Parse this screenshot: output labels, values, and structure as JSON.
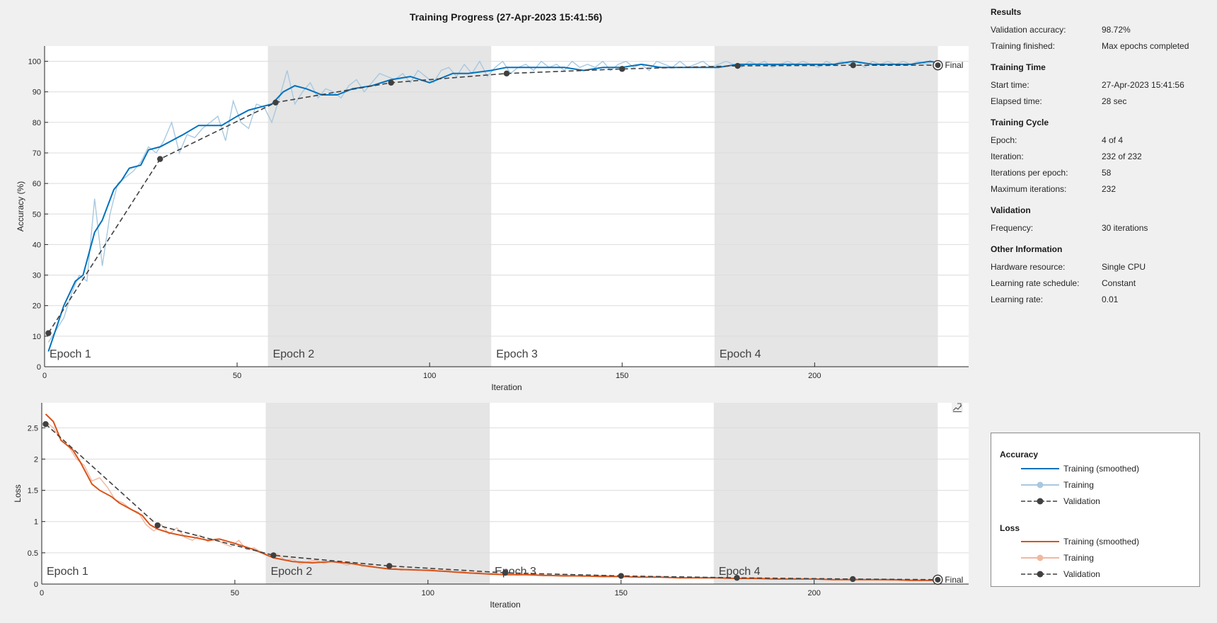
{
  "title": "Training Progress (27-Apr-2023 15:41:56)",
  "colors": {
    "acc_smooth": "#0072bd",
    "acc_raw": "#a8c8e0",
    "loss_smooth": "#d95319",
    "loss_raw": "#f0b8a0",
    "validation": "#404040",
    "epoch_shade": "#e5e5e5",
    "grid": "#dcdcdc"
  },
  "chart_data": [
    {
      "type": "line",
      "id": "accuracy",
      "xlabel": "Iteration",
      "ylabel": "Accuracy (%)",
      "xlim": [
        0,
        240
      ],
      "ylim": [
        0,
        105
      ],
      "xticks": [
        0,
        50,
        100,
        150,
        200
      ],
      "yticks": [
        0,
        10,
        20,
        30,
        40,
        50,
        60,
        70,
        80,
        90,
        100
      ],
      "grid": true,
      "epochs": [
        {
          "label": "Epoch 1",
          "start": 0,
          "end": 58
        },
        {
          "label": "Epoch 2",
          "start": 58,
          "end": 116
        },
        {
          "label": "Epoch 3",
          "start": 116,
          "end": 174
        },
        {
          "label": "Epoch 4",
          "start": 174,
          "end": 232
        }
      ],
      "final_label": "Final",
      "smoothed": {
        "name": "Training (smoothed)",
        "x": [
          1,
          5,
          8,
          10,
          13,
          15,
          18,
          20,
          22,
          25,
          27,
          30,
          33,
          36,
          40,
          43,
          46,
          50,
          53,
          56,
          59,
          62,
          65,
          68,
          72,
          76,
          80,
          85,
          90,
          95,
          100,
          106,
          110,
          116,
          120,
          125,
          130,
          135,
          140,
          145,
          150,
          155,
          160,
          165,
          170,
          175,
          180,
          185,
          190,
          195,
          200,
          205,
          210,
          215,
          220,
          225,
          230,
          232
        ],
        "y": [
          5,
          20,
          28,
          30,
          44,
          48,
          58,
          61,
          65,
          66,
          71,
          72,
          74,
          76,
          79,
          79,
          79,
          82,
          84,
          85,
          86,
          90,
          92,
          91,
          89,
          89,
          91,
          92,
          94,
          95,
          93,
          96,
          96,
          97,
          98,
          98,
          98,
          98,
          97,
          98,
          98,
          99,
          98,
          98,
          98,
          98,
          99,
          99,
          99,
          99,
          99,
          99,
          100,
          99,
          99,
          99,
          100,
          99.5
        ]
      },
      "raw": {
        "name": "Training",
        "x": [
          1,
          3,
          5,
          7,
          9,
          11,
          13,
          15,
          17,
          19,
          21,
          23,
          25,
          27,
          29,
          31,
          33,
          35,
          37,
          39,
          41,
          43,
          45,
          47,
          49,
          51,
          53,
          55,
          57,
          59,
          61,
          63,
          65,
          67,
          69,
          71,
          73,
          75,
          77,
          79,
          81,
          83,
          85,
          87,
          89,
          91,
          93,
          95,
          97,
          99,
          101,
          103,
          105,
          107,
          109,
          111,
          113,
          115,
          117,
          119,
          121,
          123,
          125,
          127,
          129,
          131,
          133,
          135,
          137,
          139,
          141,
          143,
          145,
          147,
          149,
          151,
          153,
          155,
          157,
          159,
          161,
          163,
          165,
          167,
          169,
          171,
          173,
          175,
          177,
          179,
          181,
          183,
          185,
          187,
          189,
          191,
          193,
          195,
          197,
          199,
          201,
          203,
          205,
          207,
          209,
          211,
          213,
          215,
          217,
          219,
          221,
          223,
          225,
          227,
          229,
          231
        ],
        "y": [
          8,
          12,
          16,
          24,
          30,
          28,
          55,
          33,
          50,
          60,
          62,
          64,
          67,
          72,
          70,
          74,
          80,
          70,
          76,
          75,
          78,
          80,
          82,
          74,
          87,
          80,
          78,
          86,
          85,
          80,
          88,
          97,
          86,
          90,
          93,
          88,
          91,
          90,
          88,
          92,
          94,
          90,
          93,
          96,
          95,
          94,
          96,
          93,
          97,
          95,
          93,
          97,
          98,
          95,
          99,
          96,
          100,
          95,
          98,
          100,
          96,
          98,
          99,
          97,
          100,
          98,
          99,
          97,
          100,
          98,
          99,
          98,
          100,
          97,
          99,
          100,
          98,
          99,
          97,
          100,
          99,
          98,
          100,
          98,
          99,
          100,
          98,
          99,
          100,
          99,
          98,
          100,
          99,
          100,
          98,
          99,
          100,
          99,
          100,
          99,
          98,
          100,
          99,
          100,
          99,
          100,
          98,
          100,
          99,
          100,
          99,
          100,
          99,
          100,
          99,
          100
        ]
      },
      "validation": {
        "name": "Validation",
        "x": [
          1,
          30,
          60,
          90,
          120,
          150,
          180,
          210,
          232
        ],
        "y": [
          11,
          68,
          86.5,
          93,
          96,
          97.5,
          98.5,
          98.7,
          98.72
        ]
      }
    },
    {
      "type": "line",
      "id": "loss",
      "xlabel": "Iteration",
      "ylabel": "Loss",
      "xlim": [
        0,
        240
      ],
      "ylim": [
        0,
        2.9
      ],
      "xticks": [
        0,
        50,
        100,
        150,
        200
      ],
      "yticks": [
        0,
        0.5,
        1,
        1.5,
        2,
        2.5
      ],
      "yticklabels": [
        "0",
        "0.5",
        "1",
        "1.5",
        "2",
        "2.5"
      ],
      "grid": true,
      "epochs": [
        {
          "label": "Epoch 1",
          "start": 0,
          "end": 58
        },
        {
          "label": "Epoch 2",
          "start": 58,
          "end": 116
        },
        {
          "label": "Epoch 3",
          "start": 116,
          "end": 174
        },
        {
          "label": "Epoch 4",
          "start": 174,
          "end": 232
        }
      ],
      "final_label": "Final",
      "smoothed": {
        "name": "Training (smoothed)",
        "x": [
          1,
          3,
          5,
          8,
          10,
          13,
          15,
          18,
          20,
          23,
          26,
          28,
          30,
          33,
          36,
          40,
          43,
          46,
          50,
          55,
          60,
          65,
          70,
          75,
          80,
          85,
          90,
          95,
          100,
          105,
          110,
          116,
          120,
          125,
          130,
          135,
          140,
          145,
          150,
          155,
          160,
          165,
          170,
          175,
          180,
          185,
          190,
          195,
          200,
          205,
          210,
          215,
          220,
          225,
          232
        ],
        "y": [
          2.72,
          2.6,
          2.3,
          2.15,
          1.95,
          1.6,
          1.5,
          1.4,
          1.3,
          1.2,
          1.1,
          0.95,
          0.88,
          0.82,
          0.78,
          0.74,
          0.7,
          0.72,
          0.65,
          0.55,
          0.42,
          0.36,
          0.34,
          0.36,
          0.33,
          0.28,
          0.24,
          0.23,
          0.22,
          0.2,
          0.18,
          0.16,
          0.15,
          0.15,
          0.14,
          0.13,
          0.13,
          0.12,
          0.12,
          0.11,
          0.11,
          0.1,
          0.1,
          0.1,
          0.09,
          0.09,
          0.08,
          0.08,
          0.08,
          0.07,
          0.07,
          0.07,
          0.07,
          0.06,
          0.06
        ]
      },
      "raw": {
        "name": "Training",
        "x": [
          1,
          3,
          5,
          7,
          9,
          11,
          13,
          15,
          17,
          19,
          21,
          23,
          25,
          27,
          29,
          31,
          33,
          35,
          37,
          39,
          41,
          43,
          45,
          47,
          49,
          51,
          53,
          55,
          57,
          59,
          61,
          63,
          65,
          67,
          69,
          71,
          73,
          75,
          77,
          79,
          81,
          83,
          85,
          87,
          89,
          91,
          93,
          95,
          97,
          99,
          101,
          103,
          105,
          107,
          109,
          111,
          113,
          115,
          117,
          119,
          121,
          123,
          125,
          130,
          135,
          140,
          145,
          150,
          155,
          160,
          165,
          170,
          175,
          180,
          185,
          190,
          195,
          200,
          205,
          210,
          215,
          220,
          225,
          230
        ],
        "y": [
          2.6,
          2.5,
          2.3,
          2.2,
          2.0,
          1.9,
          1.65,
          1.7,
          1.55,
          1.35,
          1.3,
          1.2,
          1.15,
          0.95,
          0.85,
          0.95,
          0.8,
          0.9,
          0.75,
          0.7,
          0.78,
          0.68,
          0.72,
          0.65,
          0.6,
          0.7,
          0.55,
          0.58,
          0.5,
          0.45,
          0.48,
          0.38,
          0.4,
          0.32,
          0.36,
          0.38,
          0.33,
          0.36,
          0.34,
          0.3,
          0.34,
          0.28,
          0.3,
          0.26,
          0.25,
          0.27,
          0.22,
          0.24,
          0.23,
          0.22,
          0.24,
          0.2,
          0.22,
          0.19,
          0.2,
          0.17,
          0.19,
          0.16,
          0.18,
          0.15,
          0.17,
          0.14,
          0.15,
          0.13,
          0.15,
          0.12,
          0.14,
          0.12,
          0.11,
          0.12,
          0.1,
          0.11,
          0.1,
          0.09,
          0.1,
          0.08,
          0.09,
          0.08,
          0.07,
          0.08,
          0.07,
          0.06,
          0.07,
          0.06
        ]
      },
      "validation": {
        "name": "Validation",
        "x": [
          1,
          30,
          60,
          90,
          120,
          150,
          180,
          210,
          232
        ],
        "y": [
          2.56,
          0.94,
          0.46,
          0.29,
          0.18,
          0.13,
          0.1,
          0.08,
          0.07
        ]
      }
    }
  ],
  "info": [
    {
      "heading": "Results",
      "rows": [
        {
          "key": "Validation accuracy:",
          "value": "98.72%"
        },
        {
          "key": "Training finished:",
          "value": "Max epochs completed"
        }
      ]
    },
    {
      "heading": "Training Time",
      "rows": [
        {
          "key": "Start time:",
          "value": "27-Apr-2023 15:41:56"
        },
        {
          "key": "Elapsed time:",
          "value": "28 sec"
        }
      ]
    },
    {
      "heading": "Training Cycle",
      "rows": [
        {
          "key": "Epoch:",
          "value": "4 of 4"
        },
        {
          "key": "Iteration:",
          "value": "232 of 232"
        },
        {
          "key": "Iterations per epoch:",
          "value": "58"
        },
        {
          "key": "Maximum iterations:",
          "value": "232"
        }
      ]
    },
    {
      "heading": "Validation",
      "rows": [
        {
          "key": "Frequency:",
          "value": "30 iterations"
        }
      ]
    },
    {
      "heading": "Other Information",
      "rows": [
        {
          "key": "Hardware resource:",
          "value": "Single CPU"
        },
        {
          "key": "Learning rate schedule:",
          "value": "Constant"
        },
        {
          "key": "Learning rate:",
          "value": "0.01"
        }
      ]
    }
  ],
  "legend": {
    "accuracy_heading": "Accuracy",
    "loss_heading": "Loss",
    "accuracy_items": [
      "Training (smoothed)",
      "Training",
      "Validation"
    ],
    "loss_items": [
      "Training (smoothed)",
      "Training",
      "Validation"
    ]
  },
  "toolbar_icon": "edit-plot-icon"
}
